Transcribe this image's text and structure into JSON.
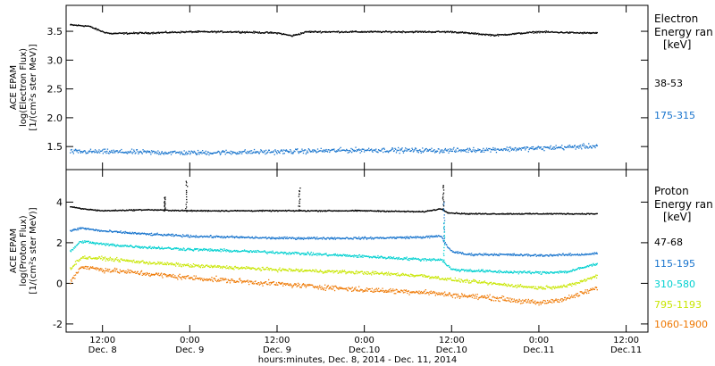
{
  "x_title": "hours:minutes, Dec. 8, 2014 - Dec. 11, 2014",
  "x_ticks": [
    {
      "time": "12:00",
      "date": "Dec. 8",
      "hour": 12
    },
    {
      "time": "0:00",
      "date": "Dec. 9",
      "hour": 24
    },
    {
      "time": "12:00",
      "date": "Dec. 9",
      "hour": 36
    },
    {
      "time": "0:00",
      "date": "Dec.10",
      "hour": 48
    },
    {
      "time": "12:00",
      "date": "Dec.10",
      "hour": 60
    },
    {
      "time": "0:00",
      "date": "Dec.11",
      "hour": 72
    },
    {
      "time": "12:00",
      "date": "Dec.11",
      "hour": 84
    }
  ],
  "chart_data": [
    {
      "type": "scatter",
      "ylabel_lines": [
        "ACE EPAM",
        "log(Electron Flux)",
        "[1/(cm²s ster MeV)]"
      ],
      "legend_title": [
        "Electron",
        "Energy ran",
        "[keV]"
      ],
      "xlim_hours": [
        7,
        87
      ],
      "ylim": [
        1.1,
        3.95
      ],
      "yticks": [
        1.5,
        2.0,
        2.5,
        3.0,
        3.5
      ],
      "ytick_labels": [
        "1.5",
        "2.0",
        "2.5",
        "3.0",
        "3.5"
      ],
      "series": [
        {
          "name": "38-53",
          "color": "#000000",
          "noise": 0.02,
          "x": [
            7.5,
            10,
            11,
            12,
            13,
            18,
            24,
            30,
            36,
            38,
            40,
            48,
            54,
            60,
            66,
            72,
            78,
            80
          ],
          "y": [
            3.62,
            3.6,
            3.55,
            3.5,
            3.47,
            3.48,
            3.5,
            3.5,
            3.48,
            3.43,
            3.5,
            3.5,
            3.5,
            3.5,
            3.44,
            3.5,
            3.48,
            3.48
          ]
        },
        {
          "name": "175-315",
          "color": "#1874cd",
          "noise": 0.06,
          "x": [
            7.5,
            12,
            24,
            36,
            48,
            60,
            72,
            80
          ],
          "y": [
            1.42,
            1.42,
            1.4,
            1.42,
            1.45,
            1.44,
            1.48,
            1.52
          ]
        }
      ]
    },
    {
      "type": "scatter",
      "ylabel_lines": [
        "ACE EPAM",
        "log(Proton Flux)",
        "[1/(cm²s ster MeV)]"
      ],
      "legend_title": [
        "Proton",
        "Energy ran",
        "[keV]"
      ],
      "xlim_hours": [
        7,
        87
      ],
      "ylim": [
        -2.4,
        5.6
      ],
      "yticks": [
        -2,
        0,
        2,
        4
      ],
      "ytick_labels": [
        "-2",
        "0",
        "2",
        "4"
      ],
      "series": [
        {
          "name": "47-68",
          "color": "#000000",
          "noise": 0.04,
          "x": [
            7.5,
            9,
            12,
            18,
            24,
            36,
            48,
            56,
            58.5,
            59.5,
            62,
            72,
            80
          ],
          "y": [
            3.8,
            3.7,
            3.6,
            3.65,
            3.6,
            3.6,
            3.6,
            3.55,
            3.7,
            3.5,
            3.45,
            3.45,
            3.45
          ]
        },
        {
          "name": "115-195",
          "color": "#1874cd",
          "noise": 0.08,
          "x": [
            7.5,
            9,
            12,
            18,
            24,
            36,
            48,
            56,
            58.5,
            59.3,
            60,
            62,
            66,
            72,
            78,
            80
          ],
          "y": [
            2.6,
            2.75,
            2.6,
            2.45,
            2.35,
            2.25,
            2.25,
            2.3,
            2.35,
            1.85,
            1.6,
            1.45,
            1.45,
            1.4,
            1.45,
            1.5
          ]
        },
        {
          "name": "310-580",
          "color": "#00d0d0",
          "noise": 0.1,
          "x": [
            7.5,
            9,
            12,
            18,
            24,
            36,
            48,
            56,
            58.5,
            60,
            66,
            72,
            76,
            80
          ],
          "y": [
            1.6,
            2.1,
            1.95,
            1.8,
            1.7,
            1.55,
            1.35,
            1.2,
            1.2,
            0.7,
            0.6,
            0.55,
            0.6,
            1.0
          ]
        },
        {
          "name": "795-1193",
          "color": "#c8e600",
          "noise": 0.12,
          "x": [
            7.5,
            9,
            12,
            18,
            24,
            36,
            48,
            56,
            60,
            66,
            72,
            76,
            80
          ],
          "y": [
            0.75,
            1.3,
            1.25,
            1.05,
            0.9,
            0.7,
            0.55,
            0.4,
            0.2,
            0.0,
            -0.2,
            -0.1,
            0.4
          ]
        },
        {
          "name": "1060-1900",
          "color": "#ee7700",
          "noise": 0.18,
          "x": [
            7.5,
            9,
            12,
            18,
            24,
            36,
            48,
            56,
            60,
            66,
            72,
            76,
            80
          ],
          "y": [
            0.1,
            0.85,
            0.7,
            0.5,
            0.3,
            0.0,
            -0.3,
            -0.4,
            -0.55,
            -0.7,
            -0.95,
            -0.7,
            -0.2
          ]
        }
      ],
      "spikes": [
        {
          "series": 0,
          "hour": 20.5,
          "peak": 4.3
        },
        {
          "series": 0,
          "hour": 23.5,
          "peak": 5.1
        },
        {
          "series": 0,
          "hour": 39.0,
          "peak": 4.7
        },
        {
          "series": 0,
          "hour": 58.8,
          "peak": 4.9
        },
        {
          "series": 1,
          "hour": 58.9,
          "peak": 4.0
        },
        {
          "series": 2,
          "hour": 58.9,
          "peak": 3.0
        }
      ]
    }
  ]
}
